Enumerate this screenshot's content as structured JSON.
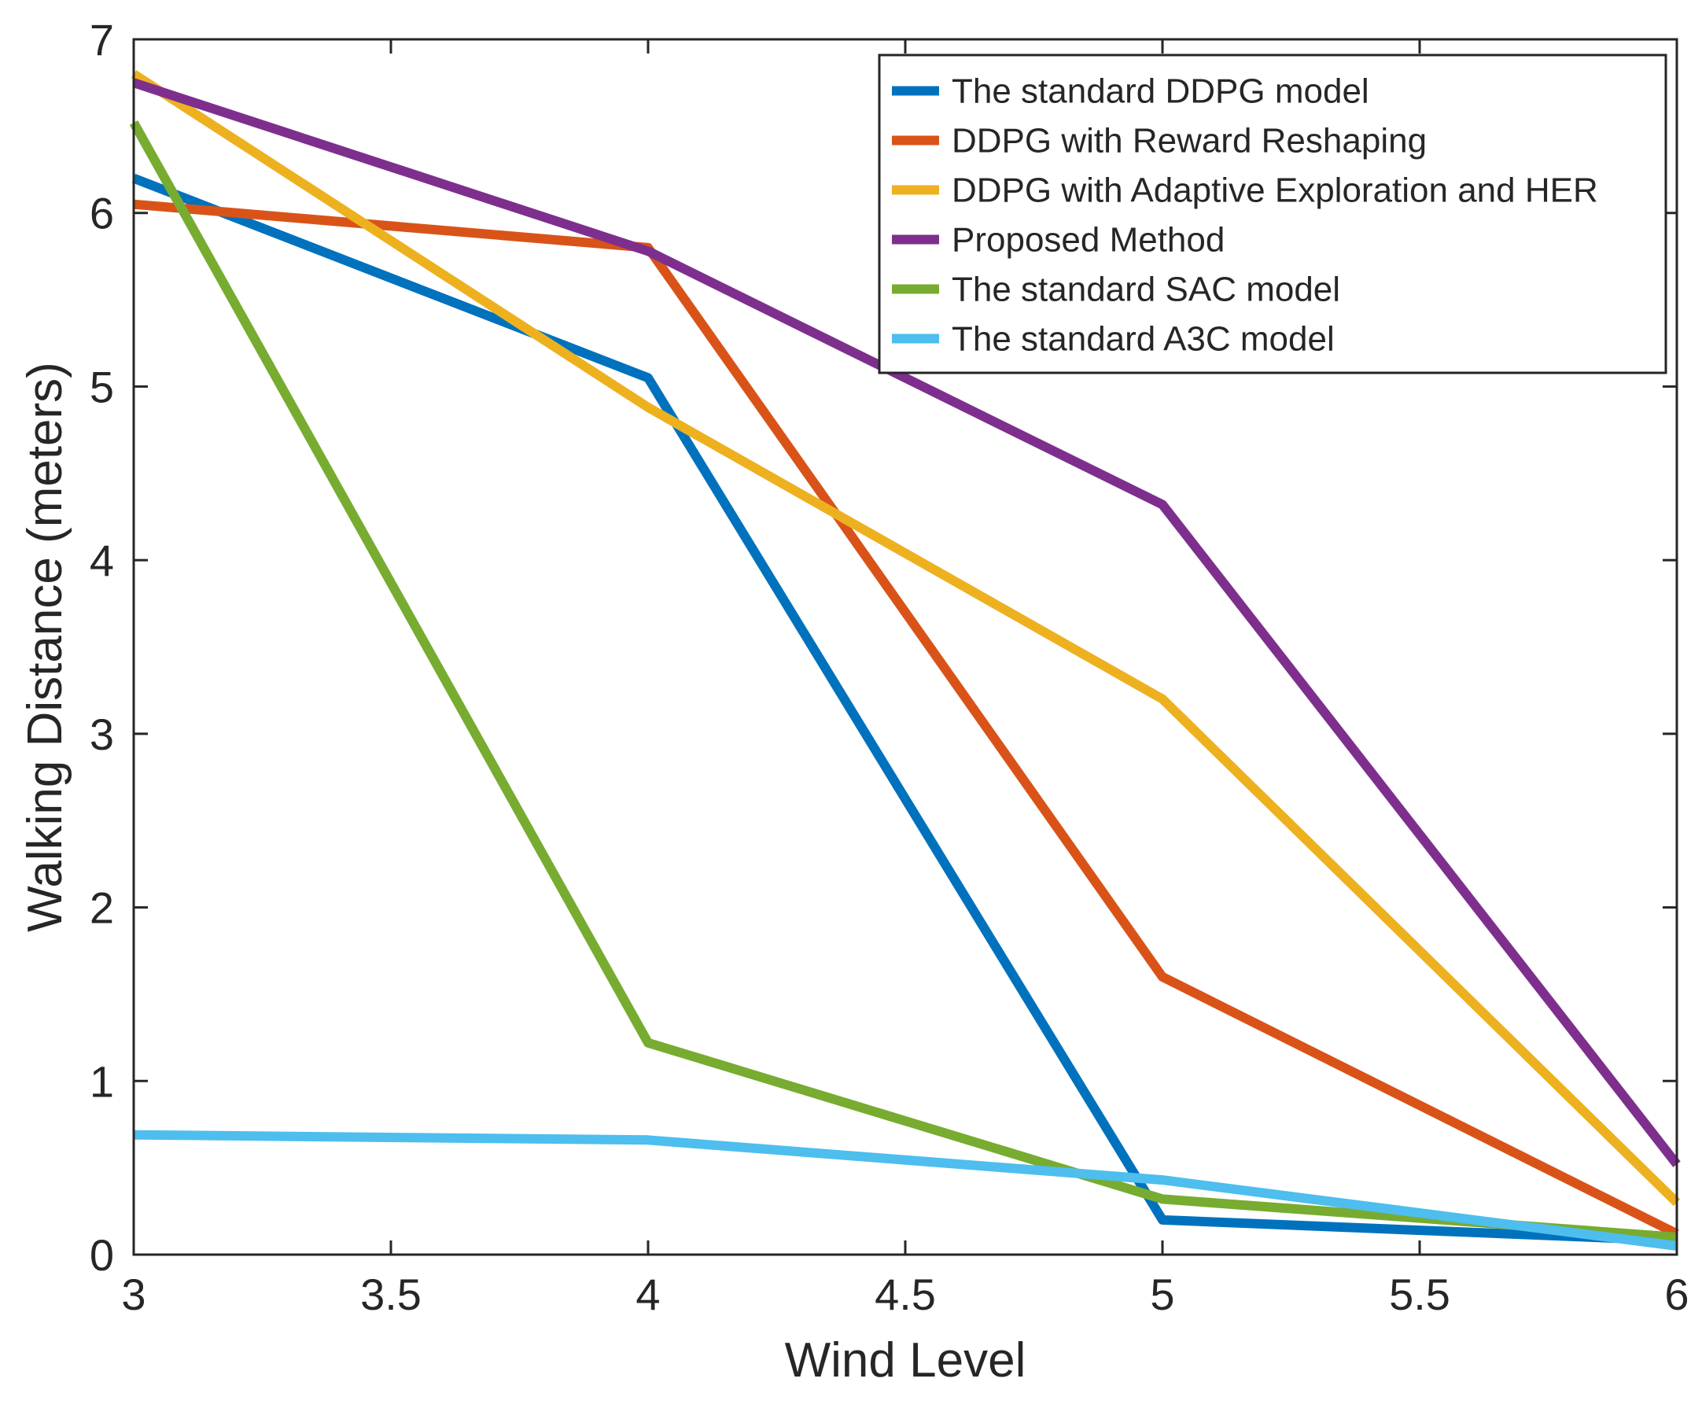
{
  "chart_data": {
    "type": "line",
    "xlabel": "Wind Level",
    "ylabel": "Walking Distance (meters)",
    "xlim": [
      3,
      6
    ],
    "ylim": [
      0,
      7
    ],
    "xticks": [
      "3",
      "3.5",
      "4",
      "4.5",
      "5",
      "5.5",
      "6"
    ],
    "yticks": [
      "0",
      "1",
      "2",
      "3",
      "4",
      "5",
      "6",
      "7"
    ],
    "grid": false,
    "legend_position": "top-right",
    "x": [
      3,
      4,
      5,
      6
    ],
    "series": [
      {
        "name": "The standard DDPG model",
        "color": "#0072BD",
        "values": [
          6.2,
          5.05,
          0.2,
          0.08
        ]
      },
      {
        "name": "DDPG with Reward Reshaping",
        "color": "#D95319",
        "values": [
          6.05,
          5.8,
          1.6,
          0.12
        ]
      },
      {
        "name": "DDPG with Adaptive Exploration and HER",
        "color": "#EDB120",
        "values": [
          6.8,
          4.88,
          3.2,
          0.3
        ]
      },
      {
        "name": "Proposed Method",
        "color": "#7E2F8E",
        "values": [
          6.75,
          5.78,
          4.32,
          0.52
        ]
      },
      {
        "name": "The standard SAC model",
        "color": "#77AC30",
        "values": [
          6.52,
          1.22,
          0.32,
          0.1
        ]
      },
      {
        "name": "The standard A3C model",
        "color": "#4DBEEE",
        "values": [
          0.69,
          0.66,
          0.43,
          0.05
        ]
      }
    ]
  }
}
